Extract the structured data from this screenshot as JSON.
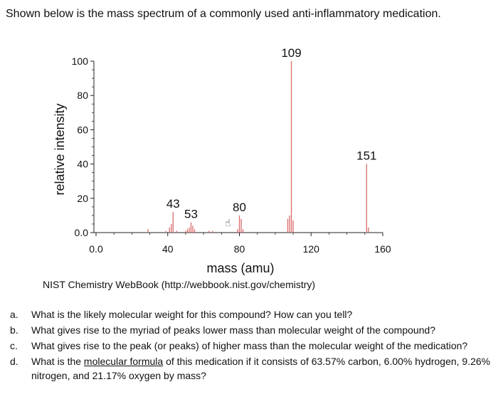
{
  "intro": "Shown below is the mass spectrum of a commonly used anti-inflammatory medication.",
  "chart_data": {
    "type": "bar",
    "xlabel": "mass (amu)",
    "ylabel": "relative intensity",
    "xlim": [
      0,
      160
    ],
    "ylim": [
      0,
      100
    ],
    "x_ticks": [
      "0.0",
      "40",
      "80",
      "120",
      "160"
    ],
    "y_ticks": [
      "0.0",
      "20",
      "40",
      "60",
      "80",
      "100"
    ],
    "peaks": [
      {
        "mz": 29,
        "intensity": 2
      },
      {
        "mz": 39,
        "intensity": 1
      },
      {
        "mz": 41,
        "intensity": 3
      },
      {
        "mz": 42,
        "intensity": 5
      },
      {
        "mz": 43,
        "intensity": 12
      },
      {
        "mz": 45,
        "intensity": 1
      },
      {
        "mz": 50,
        "intensity": 1
      },
      {
        "mz": 51,
        "intensity": 2
      },
      {
        "mz": 52,
        "intensity": 3
      },
      {
        "mz": 53,
        "intensity": 6
      },
      {
        "mz": 54,
        "intensity": 4
      },
      {
        "mz": 55,
        "intensity": 2
      },
      {
        "mz": 63,
        "intensity": 1
      },
      {
        "mz": 65,
        "intensity": 1
      },
      {
        "mz": 79,
        "intensity": 2
      },
      {
        "mz": 80,
        "intensity": 10
      },
      {
        "mz": 81,
        "intensity": 8
      },
      {
        "mz": 82,
        "intensity": 2
      },
      {
        "mz": 107,
        "intensity": 8
      },
      {
        "mz": 108,
        "intensity": 10
      },
      {
        "mz": 109,
        "intensity": 100
      },
      {
        "mz": 110,
        "intensity": 7
      },
      {
        "mz": 151,
        "intensity": 40
      },
      {
        "mz": 152,
        "intensity": 3
      }
    ],
    "labels": [
      {
        "text": "43",
        "mz": 43,
        "intensity": 12
      },
      {
        "text": "53",
        "mz": 53,
        "intensity": 6
      },
      {
        "text": "80",
        "mz": 80,
        "intensity": 10
      },
      {
        "text": "109",
        "mz": 109,
        "intensity": 100
      },
      {
        "text": "151",
        "mz": 151,
        "intensity": 40
      }
    ]
  },
  "source": "NIST Chemistry WebBook (http://webbook.nist.gov/chemistry)",
  "questions": [
    {
      "letter": "a.",
      "text": "What is the likely molecular weight for this compound? How can you tell?"
    },
    {
      "letter": "b.",
      "text": "What gives rise to the myriad of peaks lower mass than molecular weight of the compound?"
    },
    {
      "letter": "c.",
      "text": "What gives rise to the peak (or peaks) of higher mass than the molecular weight of the medication?"
    },
    {
      "letter": "d.",
      "text_before": "What is the ",
      "text_underlined": "molecular formula",
      "text_after": " of this medication if it consists of 63.57% carbon, 6.00% hydrogen, 9.26% nitrogen, and 21.17% oxygen by mass?"
    }
  ],
  "colors": {
    "peak": "#d96b6b",
    "axis": "#222222",
    "text": "#111111"
  }
}
